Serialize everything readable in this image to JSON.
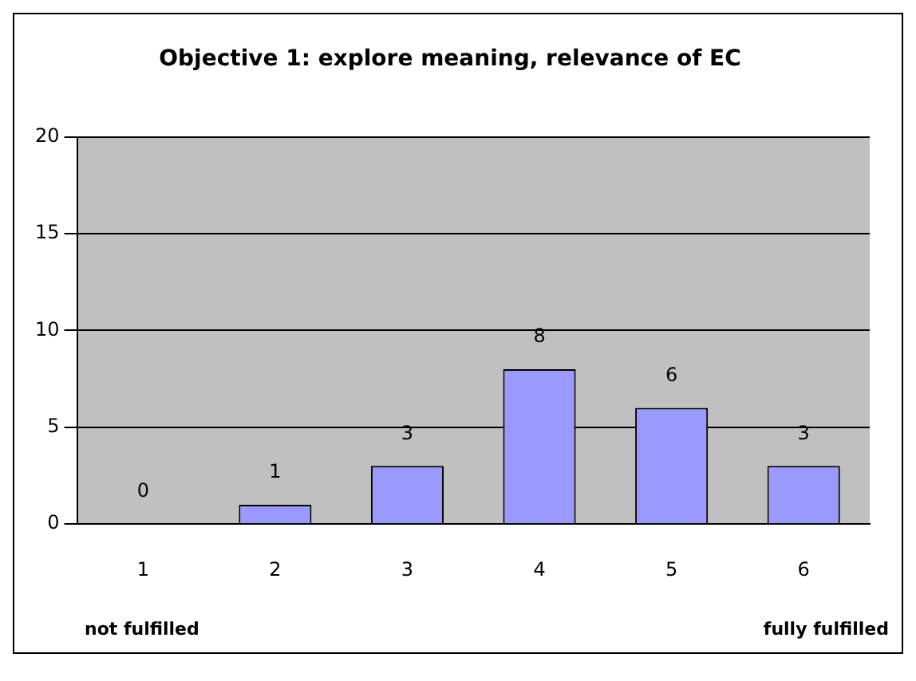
{
  "chart_data": {
    "type": "bar",
    "title": "Objective 1: explore meaning, relevance of EC",
    "categories": [
      "1",
      "2",
      "3",
      "4",
      "5",
      "6"
    ],
    "values": [
      0,
      1,
      3,
      8,
      6,
      3
    ],
    "color": "#9999ff",
    "ylim": [
      0,
      20
    ],
    "yticks": [
      0,
      5,
      10,
      15,
      20
    ],
    "grid": "y",
    "legend": false,
    "data_labels": true,
    "annotations": [
      "not fulfilled",
      "fully fulfilled"
    ]
  }
}
